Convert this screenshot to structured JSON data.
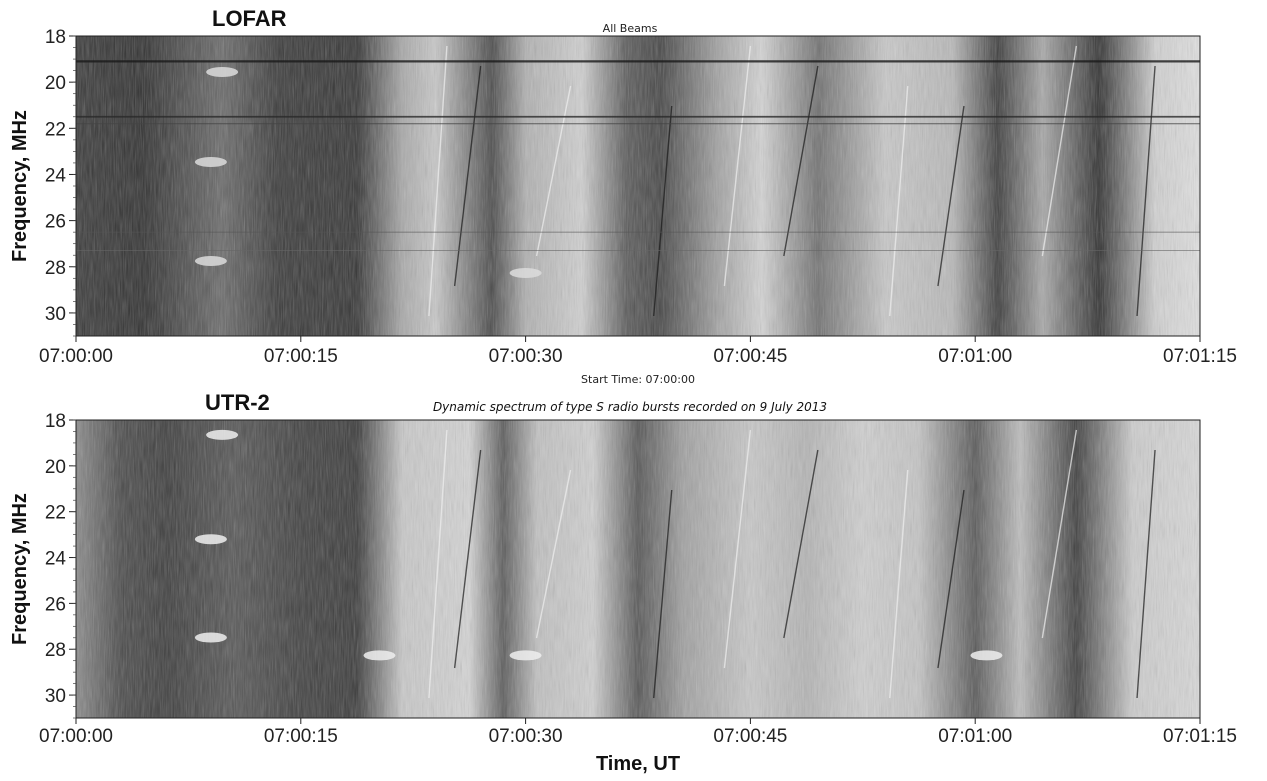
{
  "chart_data": [
    {
      "type": "heatmap",
      "panel_label": "LOFAR",
      "title": "All Beams",
      "ylabel": "Frequency, MHz",
      "xlabel": "",
      "x_ticks": [
        "07:00:00",
        "07:00:15",
        "07:00:30",
        "07:00:45",
        "07:01:00",
        "07:01:15"
      ],
      "y_ticks": [
        "18",
        "20",
        "22",
        "24",
        "26",
        "28",
        "30"
      ],
      "xlim": [
        "07:00:00",
        "07:01:15"
      ],
      "ylim": [
        31,
        18
      ],
      "below_axis_text": "Start Time: 07:00:00",
      "colormap": "grayscale"
    },
    {
      "type": "heatmap",
      "panel_label": "UTR-2",
      "title": "Dynamic spectrum of type S radio bursts recorded on 9 July 2013",
      "ylabel": "Frequency, MHz",
      "xlabel": "Time, UT",
      "x_ticks": [
        "07:00:00",
        "07:00:15",
        "07:00:30",
        "07:00:45",
        "07:01:00",
        "07:01:15"
      ],
      "y_ticks": [
        "18",
        "20",
        "22",
        "24",
        "26",
        "28",
        "30"
      ],
      "xlim": [
        "07:00:00",
        "07:01:15"
      ],
      "ylim": [
        31,
        18
      ],
      "colormap": "grayscale"
    }
  ]
}
